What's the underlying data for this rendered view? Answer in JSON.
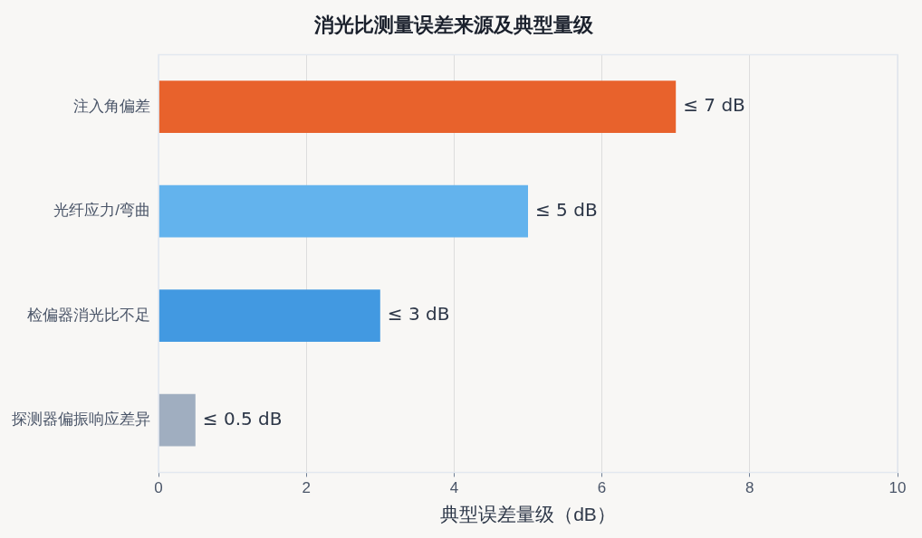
{
  "chart_data": {
    "type": "bar",
    "orientation": "horizontal",
    "title": "消光比测量误差来源及典型量级",
    "xlabel": "典型误差量级（dB）",
    "categories": [
      "注入角偏差",
      "光纤应力/弯曲",
      "检偏器消光比不足",
      "探测器偏振响应差异"
    ],
    "values": [
      7,
      5,
      3,
      0.5
    ],
    "colors": [
      "#e8622c",
      "#63b3ed",
      "#4299e1",
      "#a0aec0"
    ],
    "value_labels": [
      "≤ 7 dB",
      "≤ 5 dB",
      "≤ 3 dB",
      "≤ 0.5 dB"
    ],
    "xlim": [
      0,
      10
    ],
    "xticks": [
      0,
      2,
      4,
      6,
      8,
      10
    ],
    "grid": "x",
    "legend": false
  }
}
